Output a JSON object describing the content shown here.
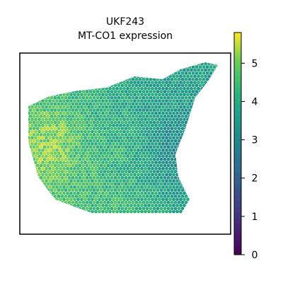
{
  "chart_data": {
    "type": "heatmap",
    "title_lines": [
      "UKF243",
      "MT-CO1 expression"
    ],
    "xlabel": "",
    "ylabel": "",
    "colormap": "viridis",
    "colorbar": {
      "min": 0,
      "max": 5.8,
      "ticks": [
        0,
        1,
        2,
        3,
        4,
        5
      ],
      "tick_labels": [
        "0",
        "1",
        "2",
        "3",
        "4",
        "5"
      ]
    },
    "region_summary": [
      {
        "region": "left",
        "approx_value": 5.3
      },
      {
        "region": "center",
        "approx_value": 4.2
      },
      {
        "region": "upper-right",
        "approx_value": 3.6
      },
      {
        "region": "right-edge",
        "approx_value": 2.9
      },
      {
        "region": "bottom",
        "approx_value": 4.5
      }
    ],
    "grid": false,
    "legend": "colorbar-right",
    "colors": {
      "frame": "#000000",
      "background": "#ffffff"
    }
  }
}
